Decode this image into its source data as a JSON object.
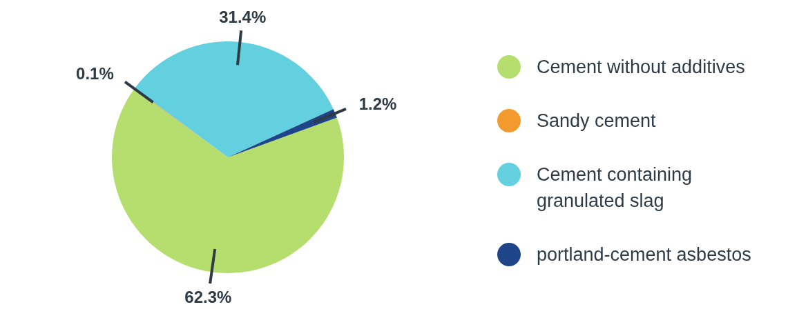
{
  "chart_data": {
    "type": "pie",
    "categories": [
      "Cement without additives",
      "Sandy cement",
      "Cement containing granulated slag",
      "portland-cement asbestos"
    ],
    "values": [
      62.3,
      0.1,
      31.4,
      1.2
    ],
    "colors": [
      "#b6de6f",
      "#f29a2e",
      "#62d0df",
      "#1f4589"
    ],
    "value_labels": [
      "62.3%",
      "0.1%",
      "31.4%",
      "1.2%"
    ],
    "legend": "right"
  }
}
